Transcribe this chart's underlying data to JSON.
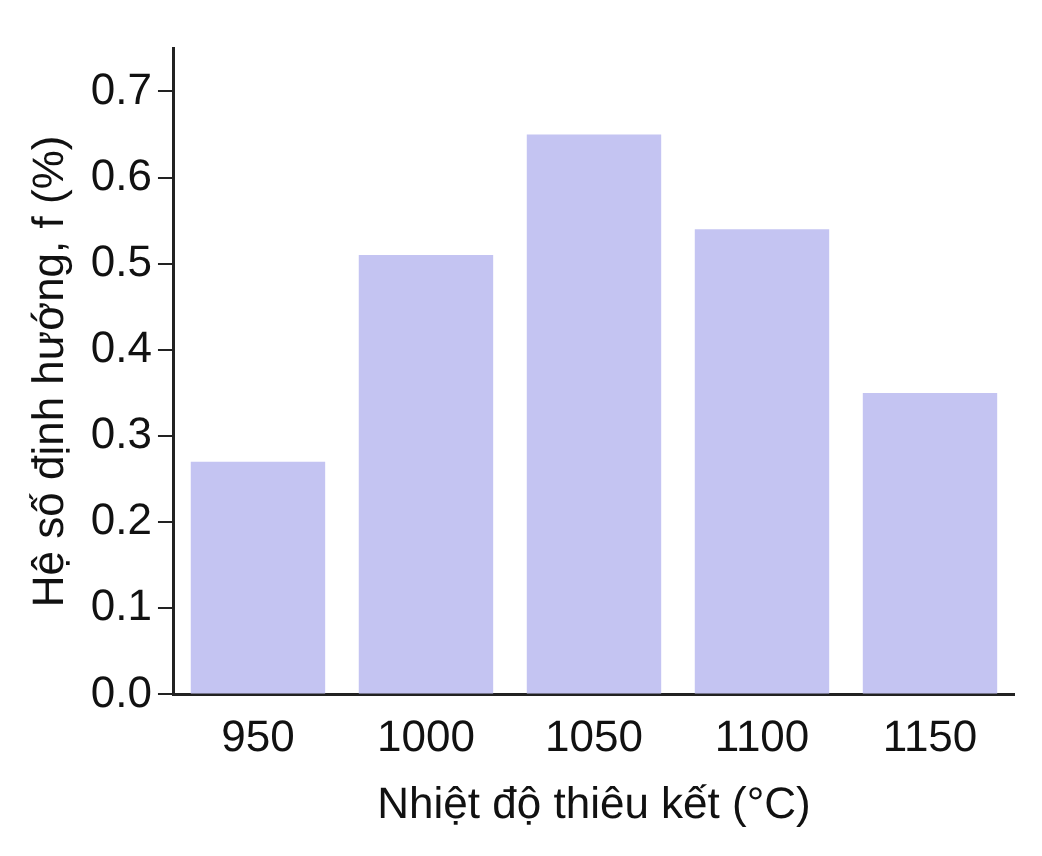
{
  "chart_data": {
    "type": "bar",
    "xlabel": "Nhiệt độ thiêu kết (°C)",
    "ylabel": "Hệ số định hướng, f (%)",
    "categories": [
      "950",
      "1000",
      "1050",
      "1100",
      "1150"
    ],
    "values": [
      0.27,
      0.51,
      0.65,
      0.54,
      0.35
    ],
    "color": "#c4c4f2",
    "ylim": [
      0,
      0.75
    ],
    "yticks": [
      {
        "value": 0,
        "label": "0.0"
      },
      0.1,
      0.2,
      0.3,
      0.4,
      0.5,
      0.6,
      0.7
    ],
    "grid": false,
    "legend": false
  }
}
